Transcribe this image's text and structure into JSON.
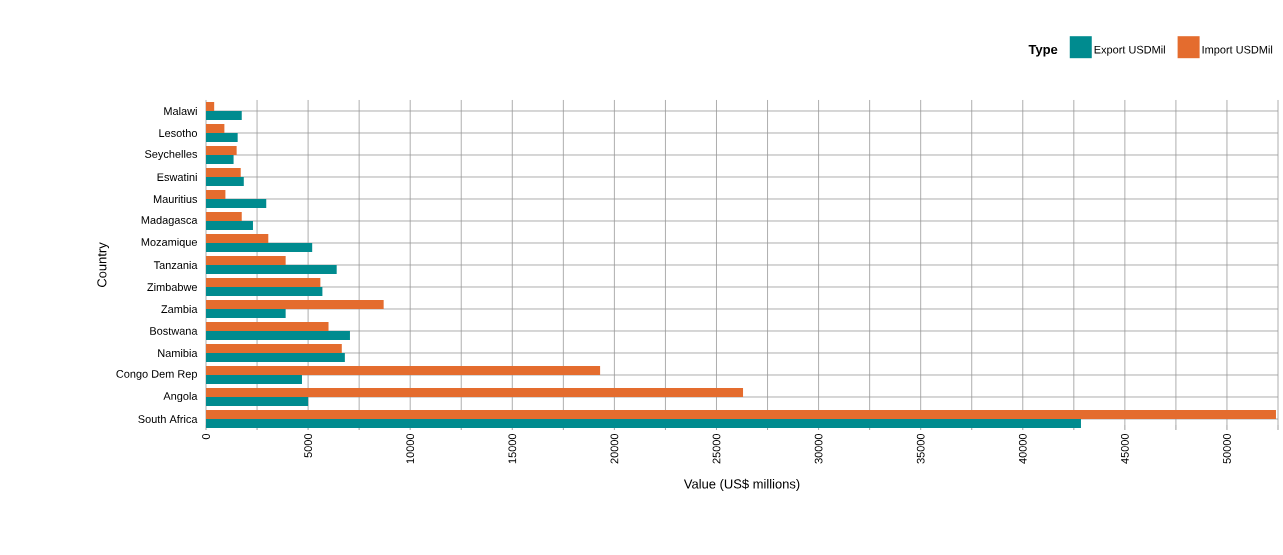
{
  "chart_data": {
    "type": "bar",
    "orientation": "horizontal",
    "xlabel": "Value (US$ millions)",
    "ylabel": "Country",
    "legend_title": "Type",
    "categories": [
      "Malawi",
      "Lesotho",
      "Seychelles",
      "Eswatini",
      "Mauritius",
      "Madagasca",
      "Mozamique",
      "Tanzania",
      "Zimbabwe",
      "Zambia",
      "Bostwana",
      "Namibia",
      "Congo Dem Rep",
      "Angola",
      "South Africa"
    ],
    "series": [
      {
        "name": "Export USDMil",
        "color": "#008b8f",
        "values": [
          1750,
          1550,
          1350,
          1850,
          2950,
          2300,
          5200,
          6400,
          5700,
          3900,
          7050,
          6800,
          4700,
          5000,
          42850
        ]
      },
      {
        "name": "Import USDMil",
        "color": "#e46c2e",
        "values": [
          400,
          900,
          1500,
          1700,
          950,
          1750,
          3050,
          3900,
          5600,
          8700,
          6000,
          6650,
          19300,
          26300,
          52400
        ]
      }
    ],
    "xlim": [
      0,
      52500
    ],
    "xticks": [
      0,
      {
        "value": 2500,
        "label": null
      },
      5000,
      {
        "value": 7500,
        "label": null
      },
      10000,
      {
        "value": 12500,
        "label": null
      },
      15000,
      {
        "value": 17500,
        "label": null
      },
      20000,
      {
        "value": 22500,
        "label": null
      },
      25000,
      {
        "value": 27500,
        "label": null
      },
      30000,
      {
        "value": 32500,
        "label": null
      },
      35000,
      {
        "value": 37500,
        "label": null
      },
      40000,
      {
        "value": 42500,
        "label": null
      },
      45000,
      {
        "value": 47500,
        "label": null
      },
      50000,
      {
        "value": 52500,
        "label": null
      }
    ],
    "grid": true,
    "legend": "top right"
  }
}
